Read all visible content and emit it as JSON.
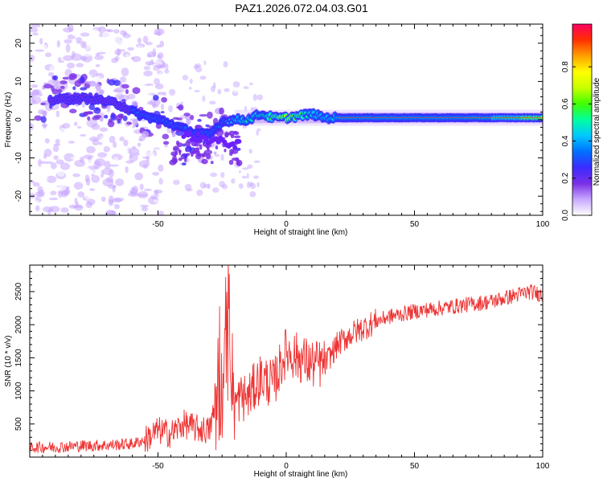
{
  "title": "PAZ1.2026.072.04.03.G01",
  "chart_data": [
    {
      "type": "heatmap",
      "title": "PAZ1.2026.072.04.03.G01",
      "xlabel": "Height of straight line (km)",
      "ylabel": "Frequency (Hz)",
      "xlim": [
        -100,
        100
      ],
      "ylim": [
        -25,
        25
      ],
      "xticks": [
        -50,
        0,
        50,
        100
      ],
      "yticks": [
        -20,
        -10,
        0,
        10,
        20
      ],
      "colorbar": {
        "label": "Normalized spectral amplitude",
        "range": [
          0,
          1
        ],
        "ticks": [
          "0.0",
          "0.2",
          "0.4",
          "0.6",
          "0.8"
        ],
        "colors": [
          "#ffffff",
          "#c8a8ff",
          "#7a2fe6",
          "#3b2bff",
          "#0070ff",
          "#00c8ff",
          "#00ffa0",
          "#40ff00",
          "#c8ff00",
          "#ffff00",
          "#ffa000",
          "#ff3000",
          "#ff0060"
        ]
      },
      "ridge": {
        "description_points_x": [
          -95,
          -85,
          -75,
          -65,
          -58,
          -50,
          -45,
          -40,
          -35,
          -30,
          -25,
          -20,
          -15,
          -10,
          -5,
          0,
          5,
          10,
          15,
          20,
          30,
          40,
          50,
          60,
          70,
          80,
          90,
          100
        ],
        "frequency_hz": [
          5,
          5.5,
          5.5,
          4,
          1.5,
          0,
          -1,
          -2.5,
          -3.5,
          -4,
          -0.5,
          0,
          0,
          1.5,
          0.5,
          0.5,
          1,
          1.5,
          0.5,
          0.5,
          0.5,
          0.5,
          0.5,
          0.5,
          0.5,
          0.5,
          0.5,
          0.5
        ],
        "amplitude": [
          0.25,
          0.25,
          0.3,
          0.3,
          0.35,
          0.35,
          0.35,
          0.35,
          0.35,
          0.4,
          0.4,
          0.45,
          0.55,
          0.5,
          0.6,
          0.75,
          0.6,
          0.5,
          0.45,
          0.5,
          0.45,
          0.45,
          0.45,
          0.45,
          0.5,
          0.55,
          0.65,
          0.75
        ]
      },
      "grid": false
    },
    {
      "type": "line",
      "xlabel": "Height of straight line (km)",
      "ylabel": "SNR (10 * v/v)",
      "xlim": [
        -100,
        100
      ],
      "ylim": [
        0,
        2900
      ],
      "xticks": [
        -50,
        0,
        50,
        100
      ],
      "yticks": [
        500,
        1000,
        1500,
        2000,
        2500
      ],
      "color": "#ee3333",
      "grid": false,
      "series": [
        {
          "x": [
            -100,
            -90,
            -80,
            -70,
            -60,
            -55,
            -50,
            -45,
            -40,
            -35,
            -30,
            -28,
            -25,
            -22,
            -20,
            -18,
            -15,
            -10,
            -5,
            0,
            5,
            10,
            15,
            20,
            25,
            30,
            35,
            40,
            50,
            60,
            70,
            80,
            90,
            95,
            100
          ],
          "values": [
            150,
            150,
            170,
            180,
            200,
            260,
            400,
            350,
            500,
            430,
            400,
            700,
            1000,
            1700,
            800,
            900,
            900,
            1200,
            1100,
            1600,
            1500,
            1400,
            1400,
            1700,
            1850,
            1950,
            2050,
            2120,
            2200,
            2250,
            2300,
            2350,
            2450,
            2500,
            2450
          ]
        }
      ]
    }
  ]
}
